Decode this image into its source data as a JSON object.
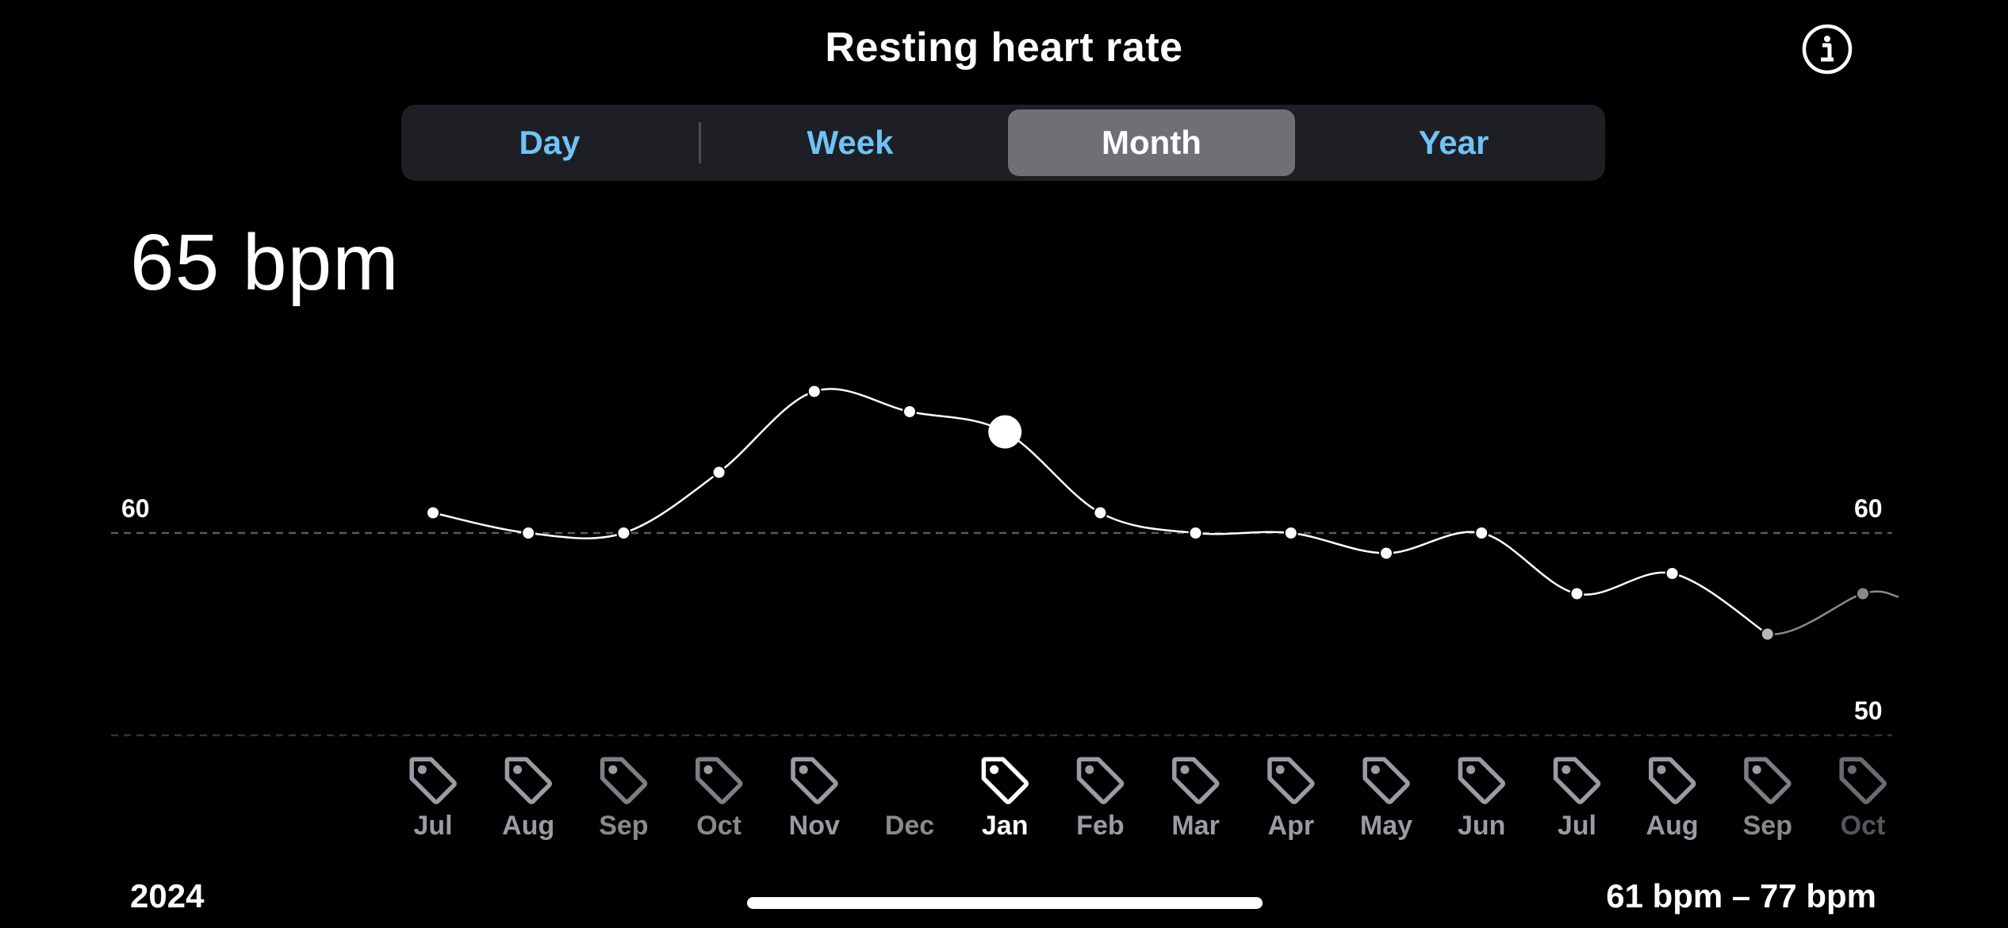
{
  "header": {
    "title": "Resting heart rate",
    "info_icon": "info-circle-icon"
  },
  "tabs": [
    {
      "label": "Day",
      "active": false
    },
    {
      "label": "Week",
      "active": false
    },
    {
      "label": "Month",
      "active": true
    },
    {
      "label": "Year",
      "active": false
    }
  ],
  "summary": {
    "value": "65 bpm"
  },
  "footer": {
    "year": "2024",
    "range": "61 bpm – 77 bpm"
  },
  "colors": {
    "accent": "#6fc3f7",
    "active_tab_bg": "#6e7076",
    "background": "#000000",
    "dimmed": "#8a8a8e",
    "tag_icon": "#9a9ba4"
  },
  "chart_data": {
    "type": "line",
    "ylim": [
      50,
      60
    ],
    "right_ticks": [
      "60",
      "50"
    ],
    "left_ticks": [
      "60"
    ],
    "categories": [
      "Jul",
      "Aug",
      "Sep",
      "Oct",
      "Nov",
      "Dec",
      "Jan",
      "Feb",
      "Mar",
      "Apr",
      "May",
      "Jun",
      "Jul",
      "Aug",
      "Sep",
      "Oct"
    ],
    "values": [
      61,
      60,
      60,
      63,
      67,
      66,
      65,
      61,
      60,
      60,
      59,
      60,
      57,
      58,
      55,
      57
    ],
    "selected": "Jan",
    "dimmed": [
      "Dec",
      "Sep",
      "Oct"
    ],
    "icons": [
      "tag-icon",
      "tag-icon",
      "tag-icon",
      "tag-icon",
      "tag-icon",
      "",
      "tag-icon",
      "tag-icon",
      "tag-icon",
      "tag-icon",
      "tag-icon",
      "tag-icon",
      "tag-icon",
      "tag-icon",
      "tag-icon",
      "tag-icon"
    ]
  }
}
